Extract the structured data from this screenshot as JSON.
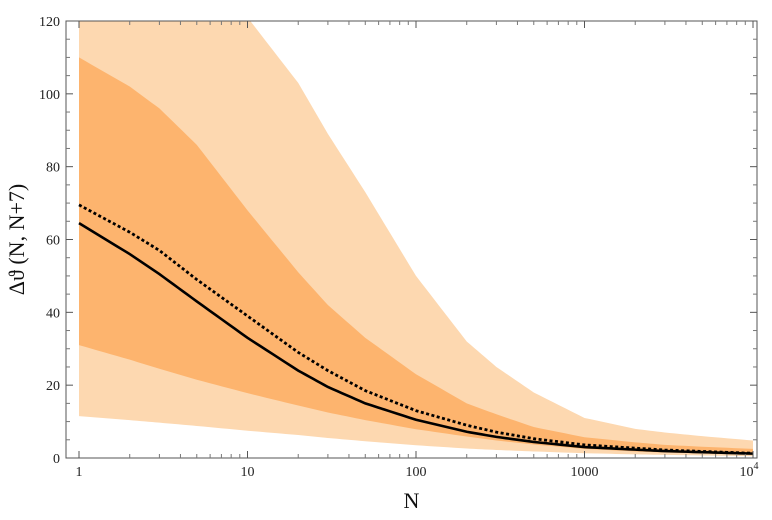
{
  "chart_data": {
    "type": "line",
    "xlabel": "N",
    "ylabel": "Δϑ (N, N+7)",
    "x_scale": "log",
    "xlim": [
      1,
      10000
    ],
    "ylim": [
      0,
      120
    ],
    "x_ticks": [
      {
        "value": 1,
        "label": "1"
      },
      {
        "value": 10,
        "label": "10"
      },
      {
        "value": 100,
        "label": "100"
      },
      {
        "value": 1000,
        "label": "1000"
      },
      {
        "value": 10000,
        "label": "10",
        "sup": "4"
      }
    ],
    "y_ticks": [
      0,
      20,
      40,
      60,
      80,
      100,
      120
    ],
    "grid": false,
    "x": [
      1,
      2,
      3,
      5,
      10,
      20,
      30,
      50,
      100,
      200,
      300,
      500,
      1000,
      2000,
      3000,
      5000,
      10000
    ],
    "bands": [
      {
        "color": "#fdd8b0",
        "lower": [
          11.5,
          10.4,
          9.7,
          8.8,
          7.5,
          6.3,
          5.5,
          4.6,
          3.5,
          2.6,
          2.2,
          1.8,
          1.3,
          1.0,
          0.85,
          0.7,
          0.5
        ],
        "upper": [
          130,
          130,
          130,
          128,
          121,
          103,
          89,
          73,
          50,
          32,
          25,
          18,
          11,
          8,
          7,
          6,
          4.8
        ]
      },
      {
        "color": "#fdb46e",
        "lower": [
          31,
          27,
          24.5,
          21.5,
          17.8,
          14.4,
          12.5,
          10.4,
          7.9,
          5.9,
          4.8,
          3.7,
          2.5,
          1.8,
          1.5,
          1.25,
          0.9
        ],
        "upper": [
          110,
          102,
          96,
          86,
          68,
          51,
          42,
          33,
          23,
          15,
          12,
          8.5,
          5.7,
          4.3,
          3.6,
          3.1,
          2.5
        ]
      }
    ],
    "series": [
      {
        "style": "solid",
        "color": "#000000",
        "values": [
          64.5,
          56,
          50.5,
          43,
          33,
          24,
          19.5,
          15,
          10.5,
          7.2,
          5.8,
          4.4,
          3.0,
          2.3,
          1.9,
          1.6,
          1.2
        ]
      },
      {
        "style": "dotted",
        "color": "#000000",
        "values": [
          69.5,
          62,
          57,
          49,
          39,
          29,
          24,
          18.5,
          13,
          9,
          7.1,
          5.3,
          3.6,
          2.7,
          2.2,
          1.8,
          1.3
        ]
      }
    ]
  }
}
